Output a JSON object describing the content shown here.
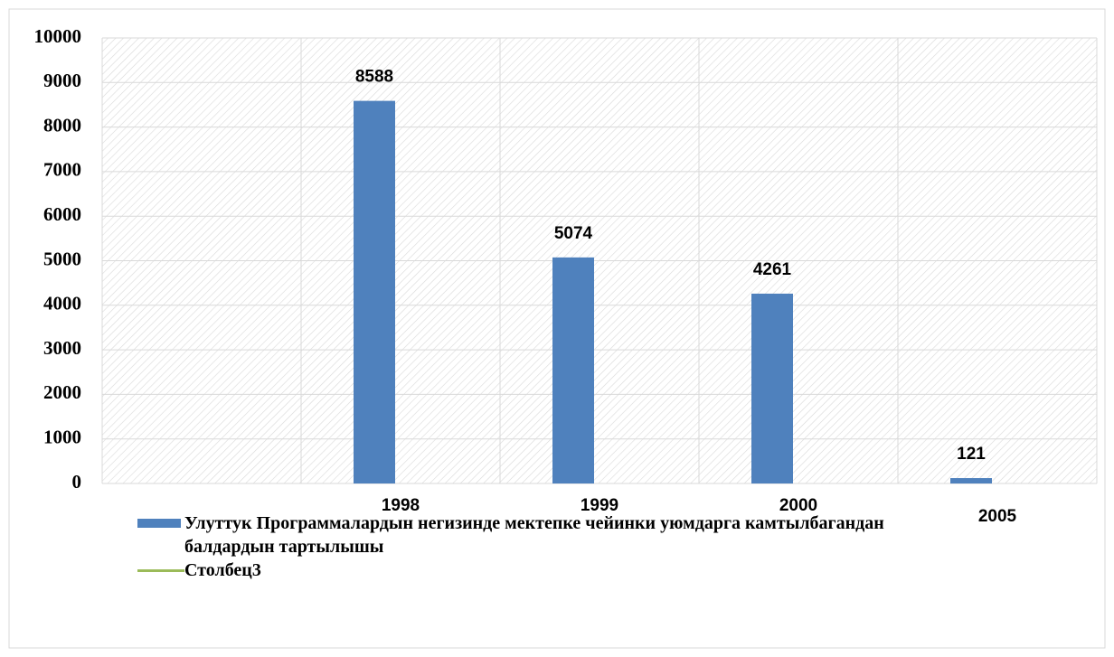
{
  "chart_data": {
    "type": "bar",
    "categories": [
      null,
      "1998",
      "1999",
      "2000",
      "2005"
    ],
    "series": [
      {
        "name": "Улуттук Программалардын негизинде мектепке чейинки уюмдарга камтылбагандан балдардын тартылышы",
        "color": "#4f81bd",
        "type": "bar",
        "values": [
          null,
          8588,
          5074,
          4261,
          121
        ]
      },
      {
        "name": "Столбец3",
        "color": "#9bbb59",
        "type": "line",
        "values": [
          null,
          null,
          null,
          null,
          null
        ]
      }
    ],
    "ylim": [
      0,
      10000
    ],
    "yticks": [
      0,
      1000,
      2000,
      3000,
      4000,
      5000,
      6000,
      7000,
      8000,
      9000,
      10000
    ],
    "grid": true
  }
}
